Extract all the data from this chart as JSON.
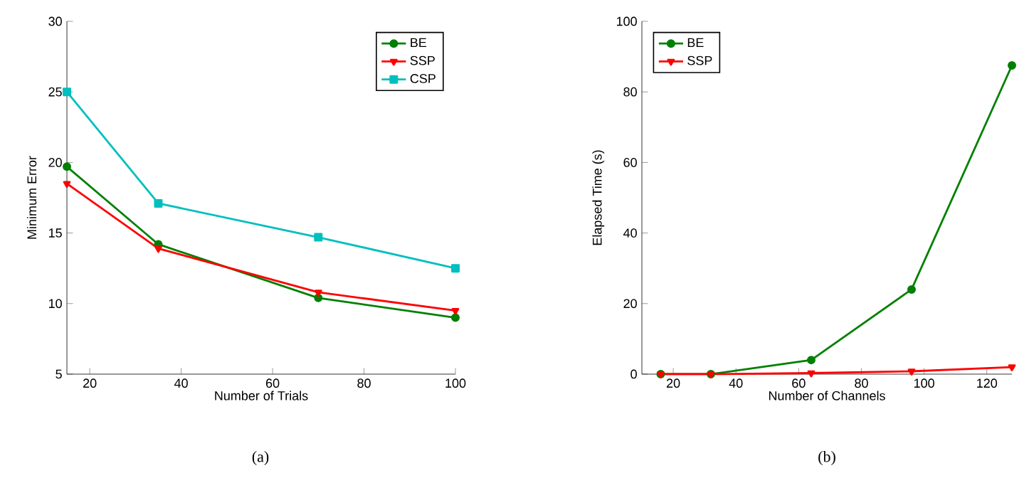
{
  "chart_data": [
    {
      "type": "line",
      "xlabel": "Number of Trials",
      "ylabel": "Minimum Error",
      "xlim": [
        15,
        100
      ],
      "ylim": [
        5,
        30
      ],
      "xticks": [
        20,
        40,
        60,
        80,
        100
      ],
      "yticks": [
        5,
        10,
        15,
        20,
        25,
        30
      ],
      "legend": "top right",
      "annotations": [
        "(a)"
      ],
      "series": [
        {
          "name": "BE",
          "color": "#008000",
          "marker": "circle",
          "x": [
            15,
            35,
            70,
            100
          ],
          "values": [
            19.7,
            14.2,
            10.4,
            9.0
          ]
        },
        {
          "name": "SSP",
          "color": "#ff0000",
          "marker": "triangle",
          "x": [
            15,
            35,
            70,
            100
          ],
          "values": [
            18.5,
            13.9,
            10.8,
            9.5
          ]
        },
        {
          "name": "CSP",
          "color": "#00bfbf",
          "marker": "square",
          "x": [
            15,
            35,
            70,
            100
          ],
          "values": [
            25.0,
            17.1,
            14.7,
            12.5
          ]
        }
      ]
    },
    {
      "type": "line",
      "xlabel": "Number of Channels",
      "ylabel": "Elapsed Time (s)",
      "xlim": [
        10,
        128
      ],
      "ylim": [
        0,
        100
      ],
      "xticks": [
        20,
        40,
        60,
        80,
        100,
        120
      ],
      "yticks": [
        0,
        20,
        40,
        60,
        80,
        100
      ],
      "legend": "top left",
      "annotations": [
        "(b)"
      ],
      "series": [
        {
          "name": "BE",
          "color": "#008000",
          "marker": "circle",
          "x": [
            16,
            32,
            64,
            96,
            128
          ],
          "values": [
            0,
            0,
            4,
            24,
            87.5
          ]
        },
        {
          "name": "SSP",
          "color": "#ff0000",
          "marker": "triangle",
          "x": [
            16,
            32,
            64,
            96,
            128
          ],
          "values": [
            0,
            0,
            0.3,
            0.8,
            2
          ]
        }
      ]
    }
  ]
}
